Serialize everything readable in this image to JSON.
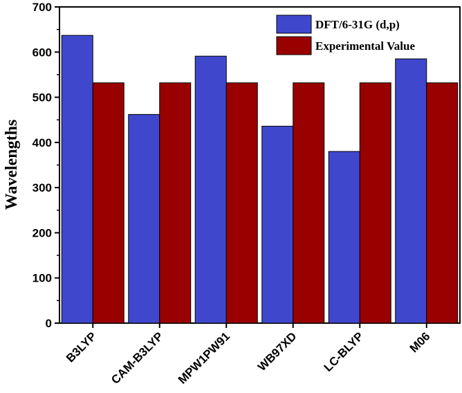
{
  "chart_data": {
    "type": "bar",
    "title": "",
    "xlabel": "",
    "ylabel": "Wavelengths",
    "ylim": [
      0,
      700
    ],
    "yticks": [
      0,
      100,
      200,
      300,
      400,
      500,
      600,
      700
    ],
    "categories": [
      "B3LYP",
      "CAM-B3LYP",
      "MPW1PW91",
      "WB97XD",
      "LC-BLYP",
      "M06"
    ],
    "series": [
      {
        "name": "DFT/6-31G (d,p)",
        "color": "#3f48cc",
        "values": [
          637,
          462,
          591,
          436,
          380,
          585
        ]
      },
      {
        "name": "Experimental Value",
        "color": "#990000",
        "values": [
          532,
          532,
          532,
          532,
          532,
          532
        ]
      }
    ],
    "legend_position": "top-right",
    "grid": false
  }
}
